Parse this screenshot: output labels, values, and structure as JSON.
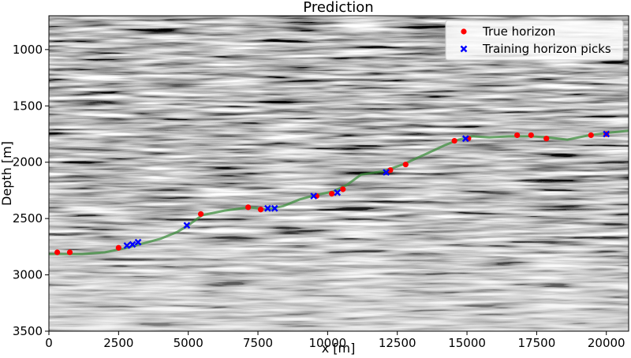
{
  "chart_data": {
    "type": "scatter",
    "title": "Prediction",
    "xlabel": "x [m]",
    "ylabel": "Depth [m]",
    "xlim": [
      0,
      20800
    ],
    "ylim": [
      3500,
      700
    ],
    "y_inverted": true,
    "x_ticks": [
      0,
      2500,
      5000,
      7500,
      10000,
      12500,
      15000,
      17500,
      20000
    ],
    "y_ticks": [
      1000,
      1500,
      2000,
      2500,
      3000,
      3500
    ],
    "background": "grayscale seismic section image",
    "grid": false,
    "legend_position": "top-right",
    "legend": [
      {
        "label": "True horizon",
        "marker": "circle",
        "color": "#ff0000"
      },
      {
        "label": "Training horizon picks",
        "marker": "x",
        "color": "#0000ff"
      }
    ],
    "predicted_horizon": {
      "color": "#3f8f3f",
      "x": [
        0,
        600,
        1200,
        2000,
        2800,
        3400,
        4000,
        4600,
        5000,
        5500,
        6300,
        7200,
        7800,
        8400,
        9000,
        9600,
        10200,
        10700,
        11200,
        12000,
        12700,
        13500,
        14200,
        14700,
        15200,
        15800,
        16500,
        17300,
        17900,
        18600,
        19400,
        20000,
        20800
      ],
      "y": [
        2815,
        2815,
        2815,
        2800,
        2760,
        2720,
        2680,
        2620,
        2560,
        2470,
        2430,
        2400,
        2420,
        2390,
        2330,
        2290,
        2260,
        2200,
        2110,
        2080,
        2020,
        1930,
        1850,
        1800,
        1770,
        1780,
        1770,
        1770,
        1780,
        1800,
        1760,
        1740,
        1720
      ]
    },
    "series": [
      {
        "name": "True horizon",
        "marker": "circle",
        "color": "#ff0000",
        "x": [
          300,
          750,
          2500,
          5450,
          7150,
          7600,
          9600,
          10150,
          10550,
          12250,
          12800,
          14550,
          15050,
          16800,
          17300,
          17850,
          19450,
          20000
        ],
        "y": [
          2800,
          2800,
          2760,
          2460,
          2400,
          2420,
          2300,
          2280,
          2240,
          2070,
          2020,
          1810,
          1790,
          1760,
          1760,
          1790,
          1760,
          1750
        ]
      },
      {
        "name": "Training horizon picks",
        "marker": "x",
        "color": "#0000ff",
        "x": [
          2800,
          3000,
          3200,
          4950,
          7850,
          8100,
          9500,
          10350,
          12100,
          14950,
          20000
        ],
        "y": [
          2740,
          2730,
          2710,
          2560,
          2410,
          2410,
          2300,
          2270,
          2090,
          1790,
          1750
        ]
      }
    ]
  }
}
